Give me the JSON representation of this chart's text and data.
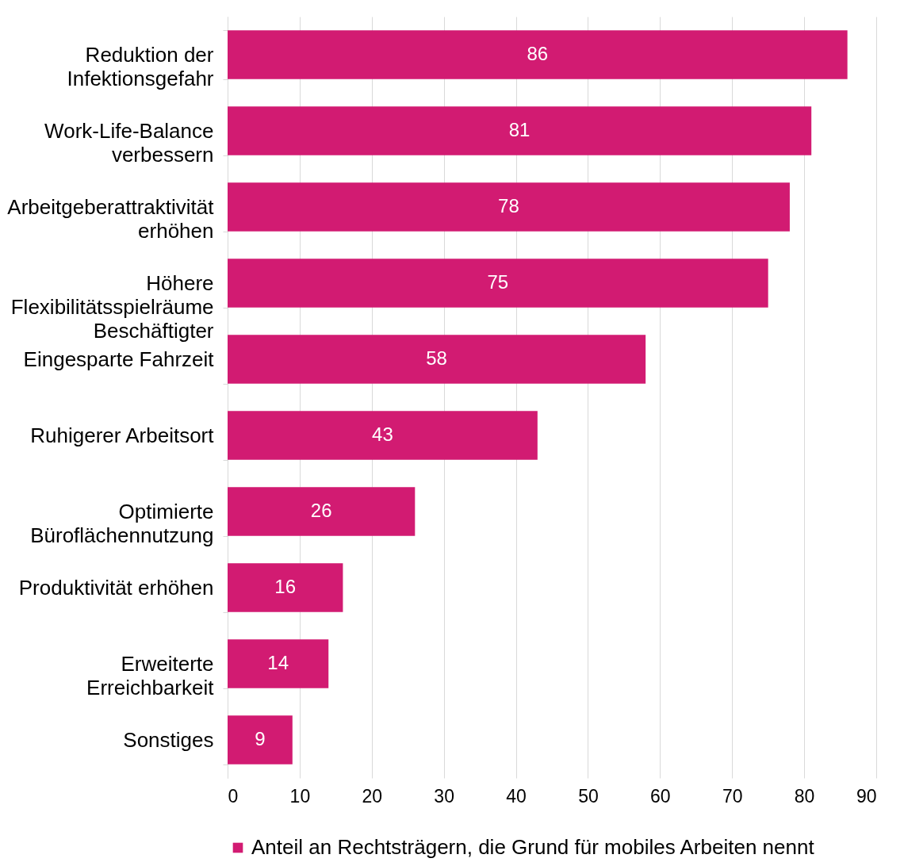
{
  "chart_data": {
    "type": "bar",
    "orientation": "horizontal",
    "categories": [
      "Reduktion der\nInfektionsgefahr",
      "Work-Life-Balance\nverbessern",
      "Arbeitgeberattraktivität\nerhöhen",
      "Höhere\nFlexibilitätsspielräume\nBeschäftigter",
      "Eingesparte Fahrzeit",
      "Ruhigerer Arbeitsort",
      "Optimierte\nBüroflächennutzung",
      "Produktivität erhöhen",
      "Erweiterte\nErreichbarkeit",
      "Sonstiges"
    ],
    "series": [
      {
        "name": "Anteil an Rechtsträgern, die Grund für mobiles Arbeiten nennt",
        "color": "#d21b72",
        "values": [
          86,
          81,
          78,
          75,
          58,
          43,
          26,
          16,
          14,
          9
        ]
      }
    ],
    "xlim": [
      0,
      90
    ],
    "xticks": [
      0,
      10,
      20,
      30,
      40,
      50,
      60,
      70,
      80,
      90
    ],
    "grid": "x",
    "legend": "bottom",
    "data_labels": true
  }
}
